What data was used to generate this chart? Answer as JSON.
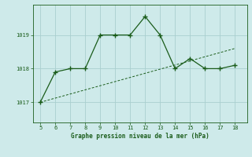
{
  "line1_x": [
    5,
    6,
    7,
    8,
    9,
    10,
    11,
    12,
    13,
    14,
    15,
    16,
    17,
    18
  ],
  "line1_y": [
    1017.0,
    1017.9,
    1018.0,
    1018.0,
    1019.0,
    1019.0,
    1019.0,
    1019.55,
    1019.0,
    1018.0,
    1018.3,
    1018.0,
    1018.0,
    1018.1
  ],
  "line2_x": [
    5,
    18
  ],
  "line2_y": [
    1017.0,
    1018.6
  ],
  "line_color": "#1a5c1a",
  "bg_color": "#ceeaea",
  "grid_color": "#aacfcf",
  "xlabel": "Graphe pression niveau de la mer (hPa)",
  "xlabel_color": "#1a5c1a",
  "tick_color": "#1a5c1a",
  "ylabel_ticks": [
    1017,
    1018,
    1019
  ],
  "xlim": [
    4.5,
    18.8
  ],
  "ylim": [
    1016.4,
    1019.9
  ]
}
